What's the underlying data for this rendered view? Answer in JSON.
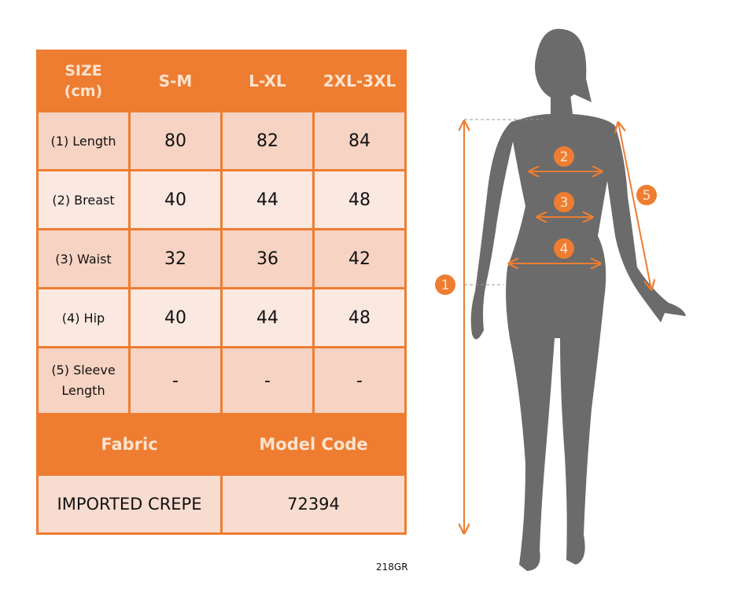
{
  "table": {
    "header": {
      "size": "SIZE",
      "unit": "(cm)",
      "columns": [
        "S-M",
        "L-XL",
        "2XL-3XL"
      ]
    },
    "rows": [
      {
        "label": "(1) Length",
        "values": [
          "80",
          "82",
          "84"
        ]
      },
      {
        "label": "(2) Breast",
        "values": [
          "40",
          "44",
          "48"
        ]
      },
      {
        "label": "(3) Waist",
        "values": [
          "32",
          "36",
          "42"
        ]
      },
      {
        "label": "(4) Hip",
        "values": [
          "40",
          "44",
          "48"
        ]
      },
      {
        "label_line1": "(5) Sleeve",
        "label_line2": "Length",
        "values": [
          "-",
          "-",
          "-"
        ]
      }
    ],
    "fabric_label": "Fabric",
    "model_code_label": "Model Code",
    "fabric_value": "IMPORTED CREPE",
    "model_code_value": "72394"
  },
  "product_code": "218GR",
  "figure": {
    "markers": [
      "1",
      "2",
      "3",
      "4",
      "5"
    ]
  },
  "colors": {
    "accent": "#ee7d31",
    "silhouette": "#6b6b6b",
    "row_dark": "#f7d3c3",
    "row_light": "#fbe8e1"
  }
}
